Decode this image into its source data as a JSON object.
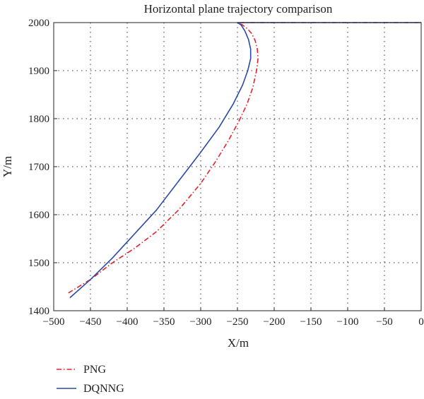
{
  "chart_data": {
    "type": "line",
    "title": "Horizontal plane trajectory comparison",
    "xlabel": "X/m",
    "ylabel": "Y/m",
    "xlim": [
      -500,
      0
    ],
    "ylim": [
      1400,
      2000
    ],
    "xticks": [
      -500,
      -450,
      -400,
      -350,
      -300,
      -250,
      -200,
      -150,
      -100,
      -50,
      0
    ],
    "yticks": [
      1400,
      1500,
      1600,
      1700,
      1800,
      1900,
      2000
    ],
    "grid": true,
    "legend_position": "bottom-left",
    "series": [
      {
        "name": "PNG",
        "color": "#e8202a",
        "style": "dash-dot",
        "x": [
          -480,
          -450,
          -420,
          -390,
          -360,
          -330,
          -300,
          -280,
          -262,
          -248,
          -237,
          -229,
          -224,
          -222,
          -223,
          -226,
          -231,
          -237,
          -244,
          -250,
          -245,
          -200,
          -150,
          -100,
          -50,
          0
        ],
        "y": [
          1437,
          1465,
          1500,
          1530,
          1565,
          1610,
          1665,
          1710,
          1755,
          1795,
          1830,
          1865,
          1900,
          1925,
          1945,
          1963,
          1978,
          1988,
          1996,
          2000,
          2000,
          2000,
          2000,
          2000,
          2000,
          2000
        ]
      },
      {
        "name": "DQNNG",
        "color": "#2b4aa8",
        "style": "solid",
        "x": [
          -478,
          -450,
          -420,
          -390,
          -360,
          -330,
          -300,
          -275,
          -256,
          -243,
          -236,
          -232,
          -232,
          -235,
          -240,
          -245,
          -250,
          -245,
          -200,
          -150,
          -100,
          -50,
          0
        ],
        "y": [
          1427,
          1465,
          1510,
          1560,
          1610,
          1670,
          1730,
          1782,
          1830,
          1870,
          1900,
          1925,
          1945,
          1965,
          1983,
          1995,
          2000,
          2000,
          2000,
          2000,
          2000,
          2000,
          2000
        ]
      }
    ]
  }
}
